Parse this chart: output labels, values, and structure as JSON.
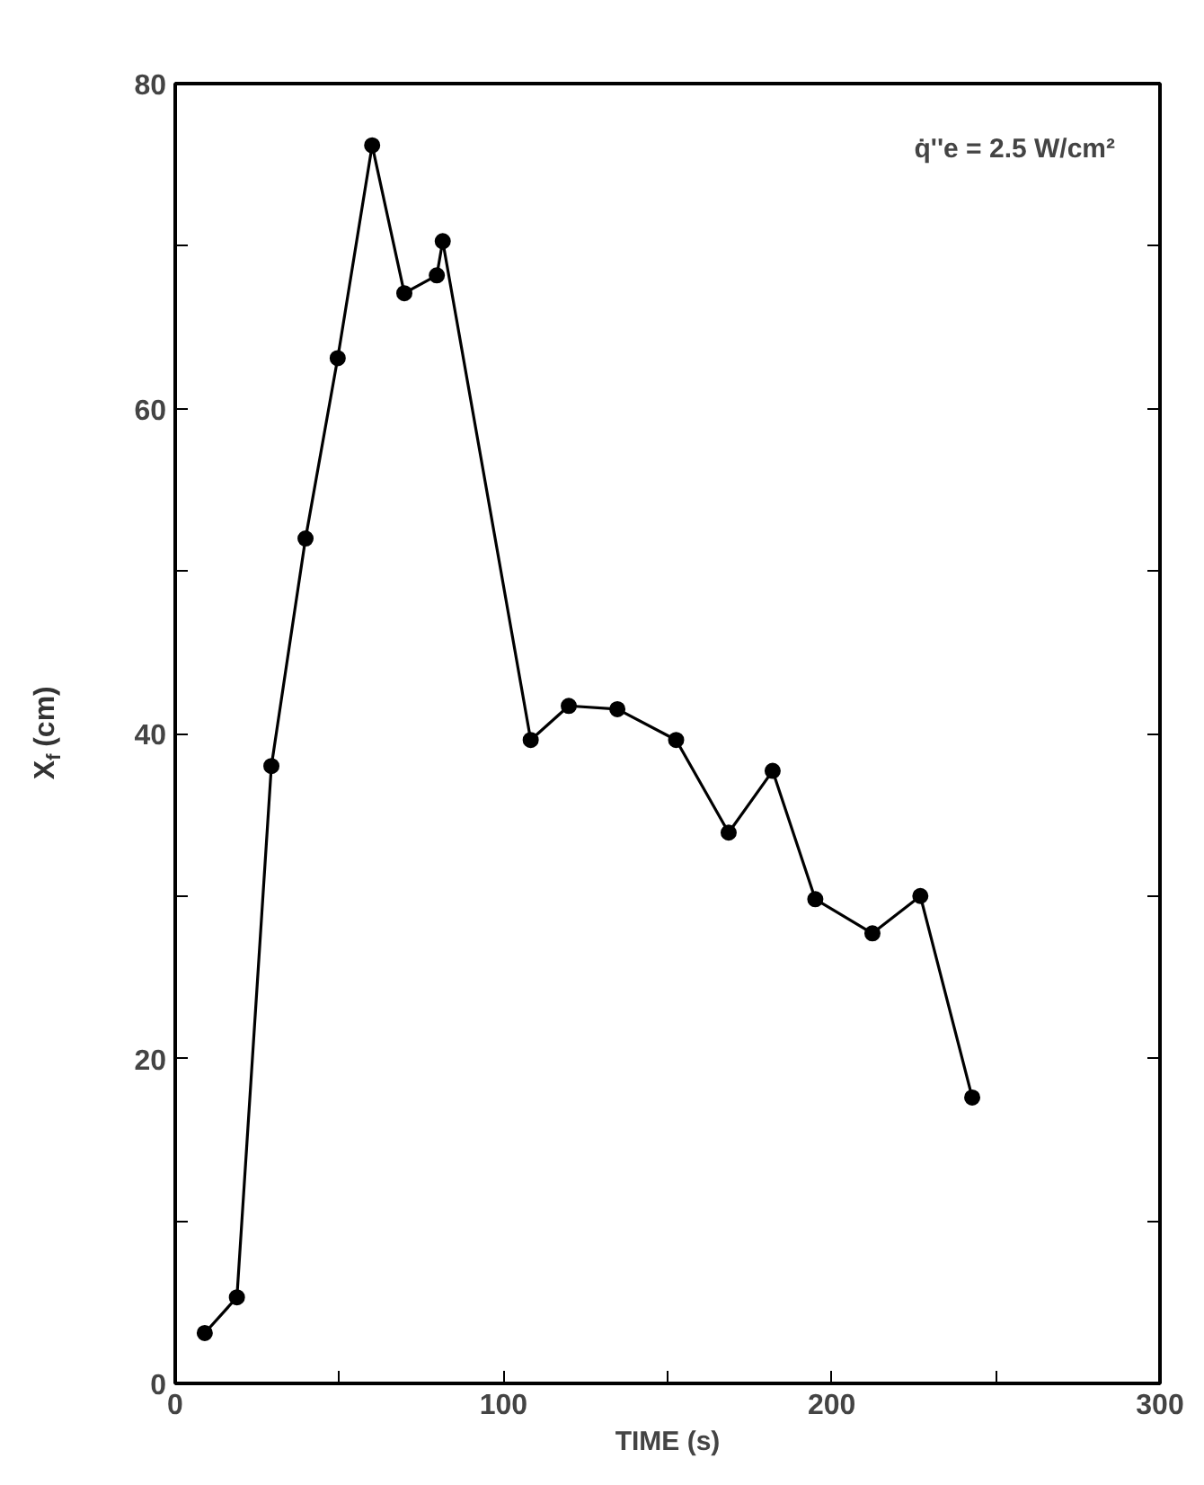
{
  "chart_data": {
    "type": "line",
    "xlabel": "TIME (s)",
    "ylabel": "X$_{f}$ (cm)",
    "annotations": [
      "q̇''e = 2.5 W/cm²"
    ],
    "x": [
      9,
      18.8,
      29.3,
      39.7,
      49.5,
      60,
      69.8,
      79.7,
      81.5,
      108.3,
      119.9,
      134.7,
      152.6,
      168.6,
      182,
      195,
      212.4,
      227,
      242.8
    ],
    "series": [
      {
        "color": "#000000",
        "values": [
          3.1,
          5.3,
          38,
          52,
          63.1,
          76.2,
          67.1,
          68.2,
          70.3,
          39.6,
          41.7,
          41.5,
          39.6,
          33.9,
          37.7,
          29.8,
          27.7,
          30,
          17.6
        ]
      }
    ],
    "xlim": [
      0,
      300
    ],
    "ylim": [
      0,
      80
    ],
    "xticks": [
      0,
      {
        "value": 50,
        "label": null
      },
      100,
      {
        "value": 150,
        "label": null
      },
      200,
      {
        "value": 250,
        "label": null
      },
      300
    ],
    "yticks": [
      0,
      {
        "value": 10,
        "label": null
      },
      20,
      {
        "value": 30,
        "label": null
      },
      40,
      {
        "value": 50,
        "label": null
      },
      60,
      {
        "value": 70,
        "label": null
      },
      80
    ],
    "grid": false,
    "marker": "circle",
    "line_style": "solid"
  }
}
